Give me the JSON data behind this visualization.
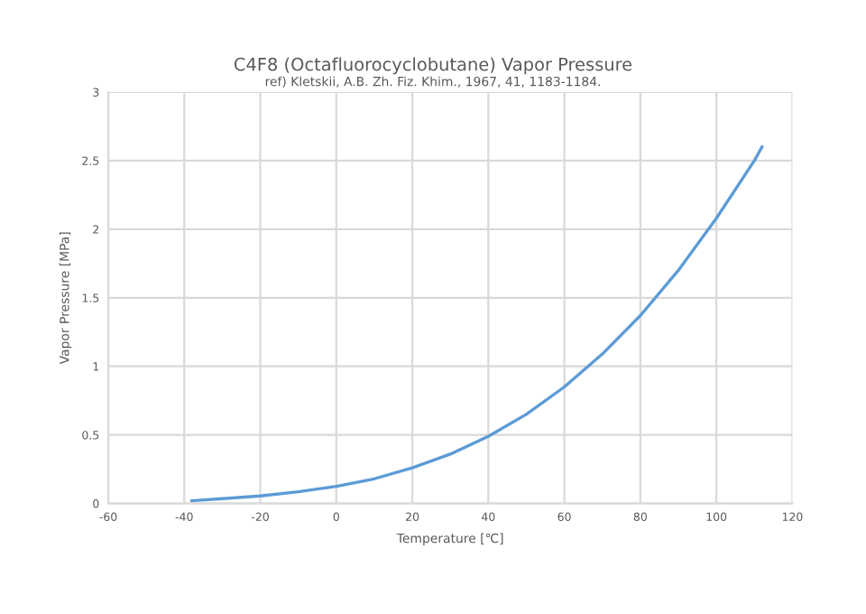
{
  "chart_data": {
    "type": "line",
    "title": "C4F8 (Octafluorocyclobutane) Vapor Pressure",
    "subtitle": "ref) Kletskii, A.B. Zh. Fiz. Khim., 1967, 41, 1183-1184.",
    "xlabel": "Temperature [℃]",
    "ylabel": "Vapor Pressure [MPa]",
    "series": [
      {
        "color": "#5b9bd5",
        "x": [
          -38,
          -30,
          -20,
          -10,
          0,
          10,
          20,
          30,
          40,
          50,
          60,
          70,
          80,
          90,
          100,
          110,
          112
        ],
        "values": [
          0.02,
          0.035,
          0.055,
          0.085,
          0.125,
          0.18,
          0.26,
          0.36,
          0.49,
          0.65,
          0.85,
          1.09,
          1.37,
          1.7,
          2.08,
          2.5,
          2.6
        ]
      }
    ],
    "xlim": [
      -60,
      120
    ],
    "xticks": [
      -60,
      -40,
      -20,
      0,
      20,
      40,
      60,
      80,
      100,
      120
    ],
    "ylim": [
      0,
      3
    ],
    "yticks": [
      0,
      0.5,
      1,
      1.5,
      2,
      2.5,
      3
    ],
    "grid": true,
    "marker": "none",
    "line_style": "solid"
  }
}
